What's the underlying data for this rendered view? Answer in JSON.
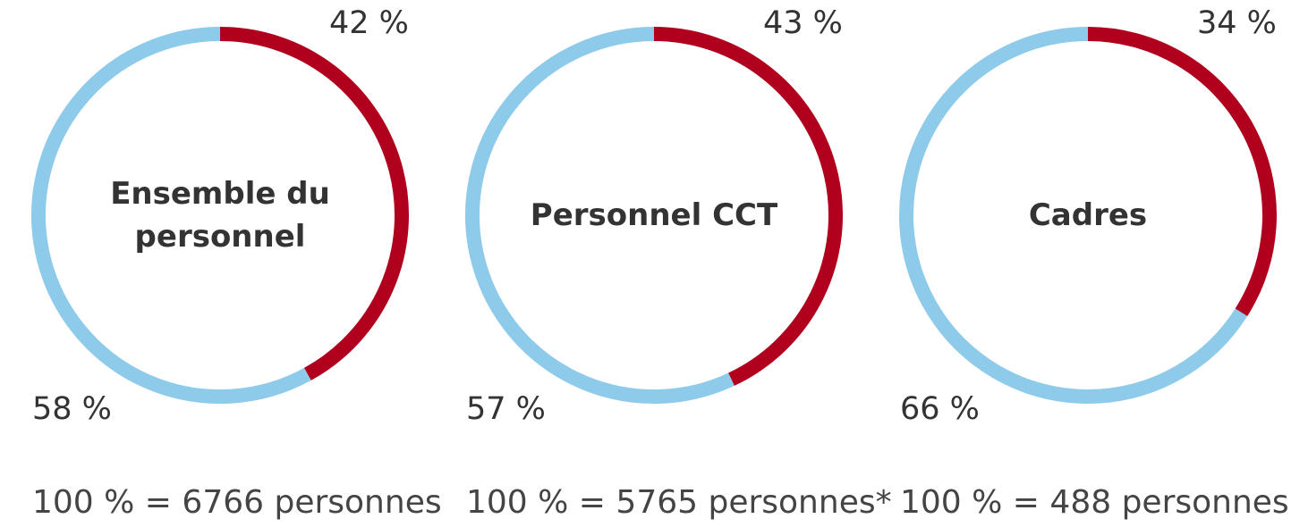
{
  "chart_data": [
    {
      "type": "pie",
      "title": "Ensemble du personnel",
      "values": [
        42,
        58
      ],
      "value_labels": [
        "42 %",
        "58 %"
      ],
      "colors": [
        "#b0001e",
        "#8ecbea"
      ],
      "note": "100 % = 6766 personnes"
    },
    {
      "type": "pie",
      "title": "Personnel CCT",
      "values": [
        43,
        57
      ],
      "value_labels": [
        "43 %",
        "57 %"
      ],
      "colors": [
        "#b0001e",
        "#8ecbea"
      ],
      "note": "100 % = 5765 personnes*"
    },
    {
      "type": "pie",
      "title": "Cadres",
      "values": [
        34,
        66
      ],
      "value_labels": [
        "34 %",
        "66 %"
      ],
      "colors": [
        "#b0001e",
        "#8ecbea"
      ],
      "note": "100 % = 488 personnes"
    }
  ]
}
